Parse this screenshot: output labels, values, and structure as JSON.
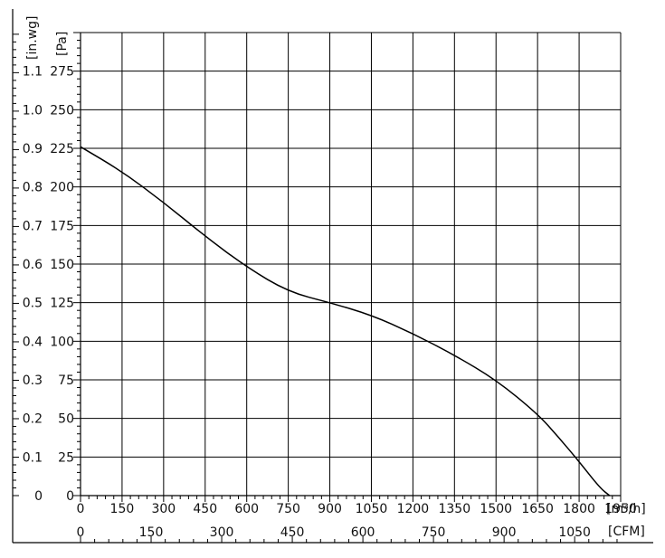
{
  "chart_data": {
    "type": "line",
    "x_unit_primary": "[m³/h]",
    "x_unit_secondary": "[CFM]",
    "y_unit_primary": "[Pa]",
    "y_unit_secondary": "[in.wg]",
    "xlim": [
      0,
      1950
    ],
    "ylim": [
      0,
      300
    ],
    "grid": true,
    "x_ticks_m3h": [
      {
        "value": 0,
        "label": "0"
      },
      {
        "value": 150,
        "label": "150"
      },
      {
        "value": 300,
        "label": "300"
      },
      {
        "value": 450,
        "label": "450"
      },
      {
        "value": 600,
        "label": "600"
      },
      {
        "value": 750,
        "label": "750"
      },
      {
        "value": 900,
        "label": "900"
      },
      {
        "value": 1050,
        "label": "1050"
      },
      {
        "value": 1200,
        "label": "1200"
      },
      {
        "value": 1350,
        "label": "1350"
      },
      {
        "value": 1500,
        "label": "1500"
      },
      {
        "value": 1650,
        "label": "1650"
      },
      {
        "value": 1800,
        "label": "1800"
      },
      {
        "value": 1950,
        "label": "1950"
      }
    ],
    "x_ticks_cfm": [
      {
        "value": 0,
        "label": "0"
      },
      {
        "value": 150,
        "label": "150"
      },
      {
        "value": 300,
        "label": "300"
      },
      {
        "value": 450,
        "label": "450"
      },
      {
        "value": 600,
        "label": "600"
      },
      {
        "value": 750,
        "label": "750"
      },
      {
        "value": 900,
        "label": "900"
      },
      {
        "value": 1050,
        "label": "1050"
      }
    ],
    "y_ticks_pa": [
      {
        "value": 0,
        "label": "0"
      },
      {
        "value": 25,
        "label": "25"
      },
      {
        "value": 50,
        "label": "50"
      },
      {
        "value": 75,
        "label": "75"
      },
      {
        "value": 100,
        "label": "100"
      },
      {
        "value": 125,
        "label": "125"
      },
      {
        "value": 150,
        "label": "150"
      },
      {
        "value": 175,
        "label": "175"
      },
      {
        "value": 200,
        "label": "200"
      },
      {
        "value": 225,
        "label": "225"
      },
      {
        "value": 250,
        "label": "250"
      },
      {
        "value": 275,
        "label": "275"
      }
    ],
    "y_ticks_inwg": [
      {
        "value": 0,
        "label": "0"
      },
      {
        "value": 0.1,
        "label": "0.1"
      },
      {
        "value": 0.2,
        "label": "0.2"
      },
      {
        "value": 0.3,
        "label": "0.3"
      },
      {
        "value": 0.4,
        "label": "0.4"
      },
      {
        "value": 0.5,
        "label": "0.5"
      },
      {
        "value": 0.6,
        "label": "0.6"
      },
      {
        "value": 0.7,
        "label": "0.7"
      },
      {
        "value": 0.8,
        "label": "0.8"
      },
      {
        "value": 0.9,
        "label": "0.9"
      },
      {
        "value": 1.0,
        "label": "1.0"
      },
      {
        "value": 1.1,
        "label": "1.1"
      }
    ],
    "series": [
      {
        "x": [
          0,
          150,
          300,
          450,
          600,
          750,
          900,
          1050,
          1200,
          1350,
          1500,
          1650,
          1725,
          1800,
          1875,
          1910
        ],
        "y": [
          226,
          210,
          190,
          168,
          148,
          132,
          125,
          117,
          105,
          91,
          75,
          53,
          38,
          22,
          5,
          0
        ]
      }
    ]
  }
}
